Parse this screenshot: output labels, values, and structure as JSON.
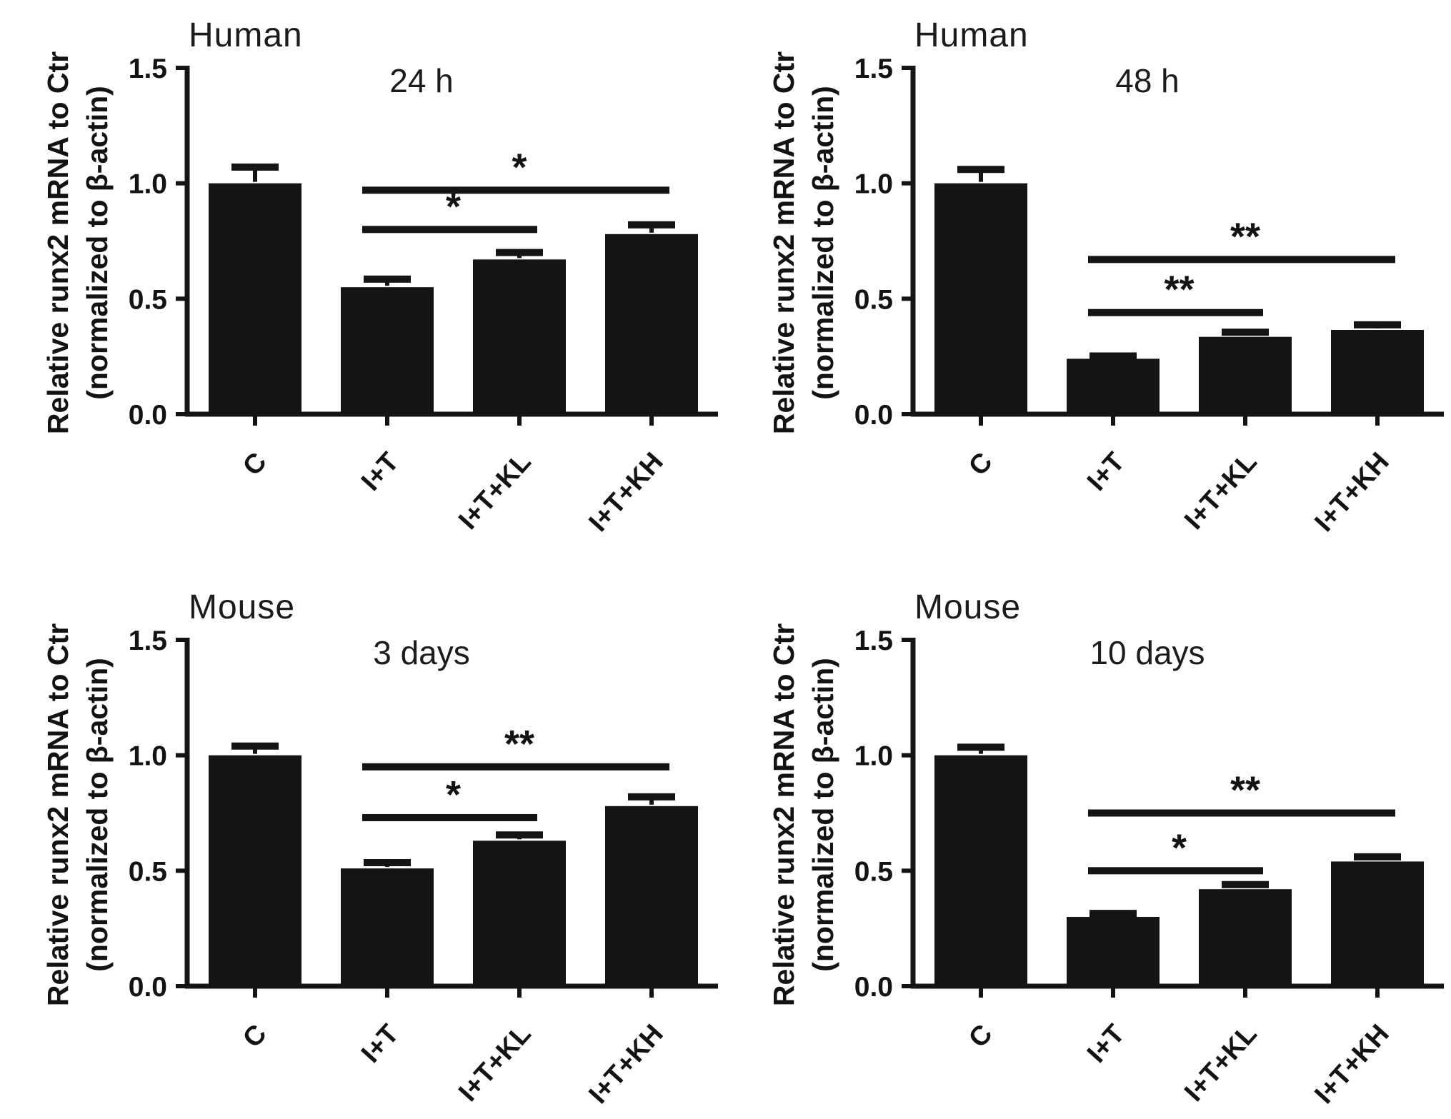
{
  "figure": {
    "background": "#ffffff",
    "ink_color": "#141414"
  },
  "chart_data": [
    {
      "type": "bar",
      "organism": "Human",
      "time_label": "24 h",
      "ylabel_line1": "Relative runx2 mRNA to Ctr",
      "ylabel_line2": "(normalized to β-actin)",
      "categories": [
        "C",
        "I+T",
        "I+T+KL",
        "I+T+KH"
      ],
      "values": [
        1.0,
        0.55,
        0.67,
        0.78
      ],
      "errors": [
        0.07,
        0.035,
        0.03,
        0.04
      ],
      "ylim": [
        0,
        1.5
      ],
      "yticks": [
        "0.0",
        "0.5",
        "1.0",
        "1.5"
      ],
      "grid": "off",
      "significance": [
        {
          "between": [
            1,
            2
          ],
          "y": 0.8,
          "stars": "*"
        },
        {
          "between": [
            1,
            3
          ],
          "y": 0.97,
          "stars": "*"
        }
      ]
    },
    {
      "type": "bar",
      "organism": "Human",
      "time_label": "48 h",
      "ylabel_line1": "Relative runx2 mRNA to Ctr",
      "ylabel_line2": "(normalized to β-actin)",
      "categories": [
        "C",
        "I+T",
        "I+T+KL",
        "I+T+KH"
      ],
      "values": [
        1.0,
        0.24,
        0.335,
        0.365
      ],
      "errors": [
        0.06,
        0.012,
        0.02,
        0.022
      ],
      "ylim": [
        0,
        1.5
      ],
      "yticks": [
        "0.0",
        "0.5",
        "1.0",
        "1.5"
      ],
      "grid": "off",
      "significance": [
        {
          "between": [
            1,
            2
          ],
          "y": 0.44,
          "stars": "**"
        },
        {
          "between": [
            1,
            3
          ],
          "y": 0.67,
          "stars": "**"
        }
      ]
    },
    {
      "type": "bar",
      "organism": "Mouse",
      "time_label": "3 days",
      "ylabel_line1": "Relative runx2 mRNA to Ctr",
      "ylabel_line2": "(normalized to β-actin)",
      "categories": [
        "C",
        "I+T",
        "I+T+KL",
        "I+T+KH"
      ],
      "values": [
        1.0,
        0.51,
        0.63,
        0.78
      ],
      "errors": [
        0.04,
        0.025,
        0.025,
        0.04
      ],
      "ylim": [
        0,
        1.5
      ],
      "yticks": [
        "0.0",
        "0.5",
        "1.0",
        "1.5"
      ],
      "grid": "off",
      "significance": [
        {
          "between": [
            1,
            2
          ],
          "y": 0.73,
          "stars": "*"
        },
        {
          "between": [
            1,
            3
          ],
          "y": 0.95,
          "stars": "**"
        }
      ]
    },
    {
      "type": "bar",
      "organism": "Mouse",
      "time_label": "10 days",
      "ylabel_line1": "Relative runx2 mRNA to Ctr",
      "ylabel_line2": "(normalized to β-actin)",
      "categories": [
        "C",
        "I+T",
        "I+T+KL",
        "I+T+KH"
      ],
      "values": [
        1.0,
        0.3,
        0.42,
        0.54
      ],
      "errors": [
        0.035,
        0.015,
        0.02,
        0.02
      ],
      "ylim": [
        0,
        1.5
      ],
      "yticks": [
        "0.0",
        "0.5",
        "1.0",
        "1.5"
      ],
      "grid": "off",
      "significance": [
        {
          "between": [
            1,
            2
          ],
          "y": 0.5,
          "stars": "*"
        },
        {
          "between": [
            1,
            3
          ],
          "y": 0.75,
          "stars": "**"
        }
      ]
    }
  ]
}
